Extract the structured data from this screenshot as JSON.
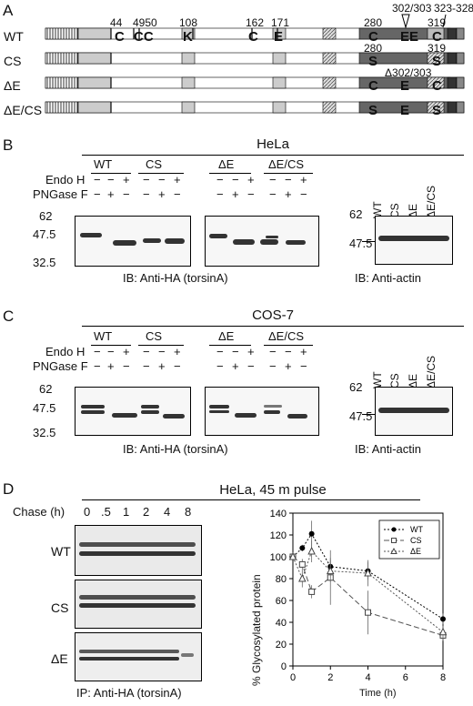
{
  "panels": {
    "a": "A",
    "b": "B",
    "c": "C",
    "d": "D"
  },
  "schematic": {
    "rows": [
      "WT",
      "CS",
      "ΔE",
      "ΔE/CS"
    ],
    "top_positions": [
      "44",
      "4950",
      "108",
      "162",
      "171",
      "280",
      "302/303",
      "319",
      "323-328"
    ],
    "top_residues": [
      "C",
      "CC",
      "K",
      "C",
      "E",
      "C",
      "EE",
      "C"
    ],
    "cs_positions": [
      "280",
      "319"
    ],
    "cs_residues": [
      "S",
      "S"
    ],
    "de_label": "Δ302/303",
    "de_residues": [
      "C",
      "E",
      "C"
    ],
    "decs_residues": [
      "S",
      "E",
      "S"
    ]
  },
  "blot_hela": {
    "title": "HeLa",
    "groups": [
      "WT",
      "CS",
      "ΔE",
      "ΔE/CS"
    ],
    "endo_label": "Endo H",
    "pngase_label": "PNGase F",
    "endo_row": [
      "−",
      "−",
      "+",
      "−",
      "−",
      "+",
      "−",
      "−",
      "+",
      "−",
      "−",
      "+"
    ],
    "pngase_row": [
      "−",
      "+",
      "−",
      "−",
      "+",
      "−",
      "−",
      "+",
      "−",
      "−",
      "+",
      "−"
    ],
    "mw": [
      "62",
      "47.5",
      "32.5"
    ],
    "actin_mw": [
      "62",
      "47.5"
    ],
    "actin_lanes": [
      "WT",
      "CS",
      "ΔE",
      "ΔE/CS"
    ],
    "caption_left": "IB: Anti-HA (torsinA)",
    "caption_right": "IB: Anti-actin"
  },
  "blot_cos": {
    "title": "COS-7",
    "caption_left": "IB: Anti-HA (torsinA)",
    "caption_right": "IB: Anti-actin"
  },
  "panel_d": {
    "title": "HeLa, 45 m pulse",
    "chase_label": "Chase (h)",
    "chase_times": [
      "0",
      ".5",
      "1",
      "2",
      "4",
      "8"
    ],
    "rows": [
      "WT",
      "CS",
      "ΔE"
    ],
    "caption": "IP: Anti-HA (torsinA)"
  },
  "chart_data": {
    "type": "line",
    "ylabel": "% Glycosylated protein",
    "xlabel": "Time (h)",
    "xlim": [
      0,
      8
    ],
    "ylim": [
      0,
      140
    ],
    "xticks": [
      "0",
      "2",
      "4",
      "6",
      "8"
    ],
    "yticks": [
      "0",
      "20",
      "40",
      "60",
      "80",
      "100",
      "120",
      "140"
    ],
    "legend_position": "top-right",
    "series": [
      {
        "name": "WT",
        "marker": "circle",
        "line": "dotted",
        "color": "#000000",
        "x": [
          0,
          0.5,
          1,
          2,
          4,
          8
        ],
        "y": [
          100,
          108,
          121,
          91,
          87,
          43
        ],
        "err": [
          0,
          3,
          12,
          8,
          8,
          5
        ]
      },
      {
        "name": "CS",
        "marker": "square",
        "line": "dashed",
        "color": "#555555",
        "x": [
          0,
          0.5,
          1,
          2,
          4,
          8
        ],
        "y": [
          100,
          93,
          68,
          81,
          49,
          28
        ],
        "err": [
          0,
          5,
          6,
          25,
          20,
          5
        ]
      },
      {
        "name": "ΔE",
        "marker": "triangle",
        "line": "dotted",
        "color": "#555555",
        "x": [
          0,
          0.5,
          1,
          2,
          4,
          8
        ],
        "y": [
          100,
          80,
          105,
          87,
          85,
          31
        ],
        "err": [
          0,
          8,
          10,
          10,
          12,
          6
        ]
      }
    ]
  }
}
